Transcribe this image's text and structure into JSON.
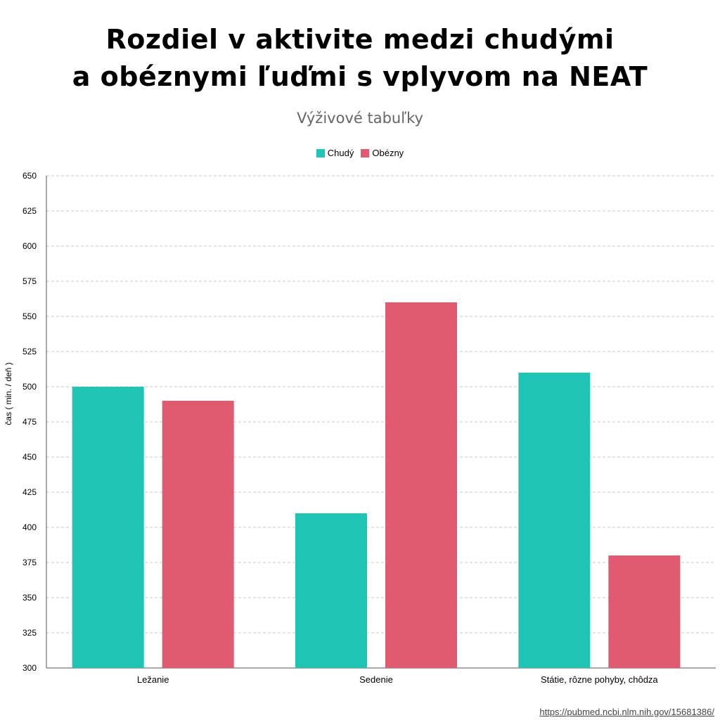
{
  "title_line1": "Rozdiel v aktivite medzi chudými",
  "title_line2": "a obéznymi ľuďmi s vplyvom na NEAT",
  "subtitle": "Výživové tabuľky",
  "source": "https://pubmed.ncbi.nlm.nih.gov/15681386/",
  "colors": {
    "chudy": "#1fc4b4",
    "obezny": "#e05a70",
    "grid": "#c8c8c8"
  },
  "chart_data": {
    "type": "bar",
    "title": "Rozdiel v aktivite medzi chudými a obéznymi ľuďmi s vplyvom na NEAT",
    "subtitle": "Výživové tabuľky",
    "xlabel": "",
    "ylabel": "čas ( min. / deň )",
    "ylim": [
      300,
      650
    ],
    "yticks": [
      300,
      325,
      350,
      375,
      400,
      425,
      450,
      475,
      500,
      525,
      550,
      575,
      600,
      625,
      650
    ],
    "categories": [
      "Ležanie",
      "Sedenie",
      "Státie, rôzne pohyby, chôdza"
    ],
    "series": [
      {
        "name": "Chudý",
        "values": [
          500,
          410,
          510
        ]
      },
      {
        "name": "Obézny",
        "values": [
          490,
          560,
          380
        ]
      }
    ],
    "grid": true,
    "legend": "top-center"
  }
}
